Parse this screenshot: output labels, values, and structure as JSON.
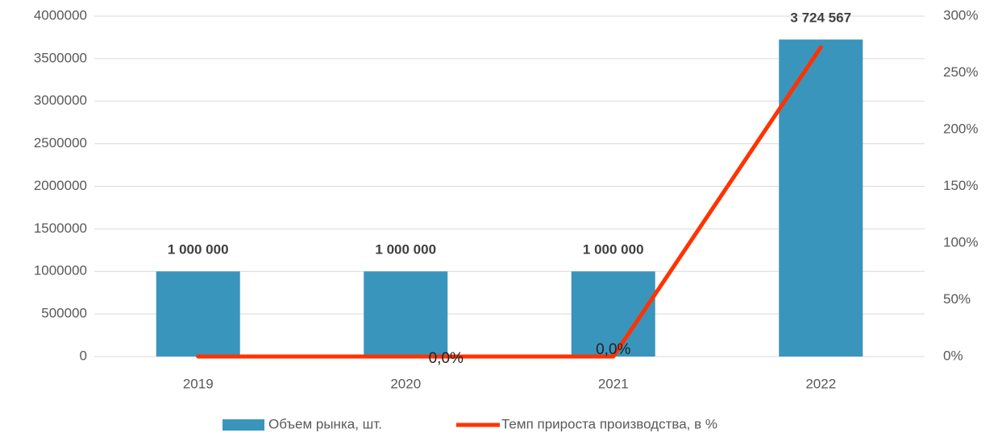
{
  "chart_data": {
    "type": "bar-line",
    "categories": [
      "2019",
      "2020",
      "2021",
      "2022"
    ],
    "series": [
      {
        "name": "Объем рынка, шт.",
        "type": "bar",
        "color": "#3a95bd",
        "values": [
          1000000,
          1000000,
          1000000,
          3724567
        ],
        "value_labels": [
          "1 000 000",
          "1 000 000",
          "1 000 000",
          "3 724 567"
        ]
      },
      {
        "name": "Темп прироста производства, в %",
        "type": "line",
        "axis": "y2",
        "color": "#ff3300",
        "values": [
          0,
          0,
          0,
          272.5
        ],
        "value_labels": [
          null,
          "0,0%",
          "0,0%",
          null
        ]
      }
    ],
    "ylim": [
      0,
      4000000
    ],
    "yticks": [
      0,
      500000,
      1000000,
      1500000,
      2000000,
      2500000,
      3000000,
      3500000,
      4000000
    ],
    "y2lim": [
      0,
      300
    ],
    "y2ticks": [
      {
        "value": 0,
        "label": "0%"
      },
      {
        "value": 50,
        "label": "50%"
      },
      {
        "value": 100,
        "label": "100%"
      },
      {
        "value": 150,
        "label": "150%"
      },
      {
        "value": 200,
        "label": "200%"
      },
      {
        "value": 250,
        "label": "250%"
      },
      {
        "value": 300,
        "label": "300%"
      }
    ],
    "grid": true,
    "legend": "bottom"
  }
}
